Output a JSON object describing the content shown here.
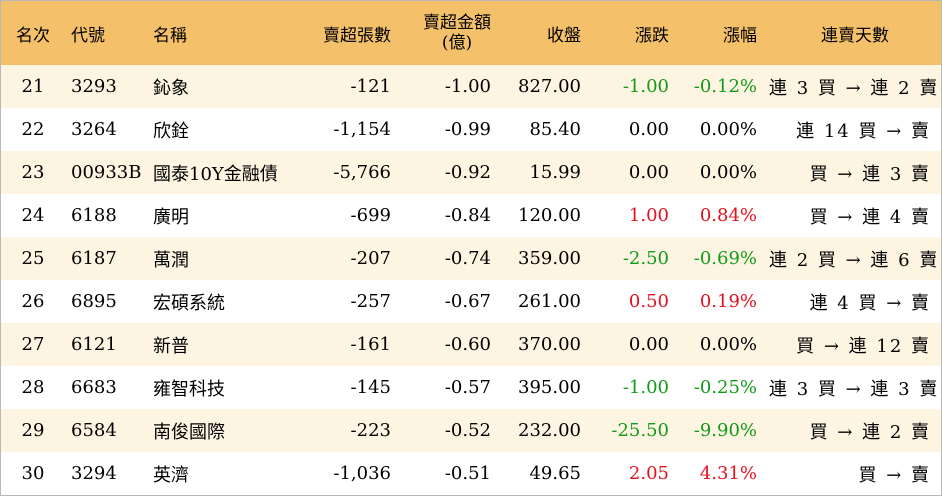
{
  "headers": {
    "rank": "名次",
    "code": "代號",
    "name": "名稱",
    "sell_lots": "賣超張數",
    "sell_amount_line1": "賣超金額",
    "sell_amount_line2": "(億)",
    "close": "收盤",
    "change": "漲跌",
    "change_pct": "漲幅",
    "streak": "連賣天數"
  },
  "rows": [
    {
      "rank": "21",
      "code": "3293",
      "name": "鈊象",
      "sell_lots": "-121",
      "sell_amount": "-1.00",
      "close": "827.00",
      "change": "-1.00",
      "change_pct": "-0.12%",
      "streak": "連 3 買 → 連 2 賣",
      "trend": "neg"
    },
    {
      "rank": "22",
      "code": "3264",
      "name": "欣銓",
      "sell_lots": "-1,154",
      "sell_amount": "-0.99",
      "close": "85.40",
      "change": "0.00",
      "change_pct": "0.00%",
      "streak": "連 14 買 → 賣",
      "trend": "flat"
    },
    {
      "rank": "23",
      "code": "00933B",
      "name": "國泰10Y金融債",
      "sell_lots": "-5,766",
      "sell_amount": "-0.92",
      "close": "15.99",
      "change": "0.00",
      "change_pct": "0.00%",
      "streak": "買 → 連 3 賣",
      "trend": "flat"
    },
    {
      "rank": "24",
      "code": "6188",
      "name": "廣明",
      "sell_lots": "-699",
      "sell_amount": "-0.84",
      "close": "120.00",
      "change": "1.00",
      "change_pct": "0.84%",
      "streak": "買 → 連 4 賣",
      "trend": "pos"
    },
    {
      "rank": "25",
      "code": "6187",
      "name": "萬潤",
      "sell_lots": "-207",
      "sell_amount": "-0.74",
      "close": "359.00",
      "change": "-2.50",
      "change_pct": "-0.69%",
      "streak": "連 2 買 → 連 6 賣",
      "trend": "neg"
    },
    {
      "rank": "26",
      "code": "6895",
      "name": "宏碩系統",
      "sell_lots": "-257",
      "sell_amount": "-0.67",
      "close": "261.00",
      "change": "0.50",
      "change_pct": "0.19%",
      "streak": "連 4 買 → 賣",
      "trend": "pos"
    },
    {
      "rank": "27",
      "code": "6121",
      "name": "新普",
      "sell_lots": "-161",
      "sell_amount": "-0.60",
      "close": "370.00",
      "change": "0.00",
      "change_pct": "0.00%",
      "streak": "買 → 連 12 賣",
      "trend": "flat"
    },
    {
      "rank": "28",
      "code": "6683",
      "name": "雍智科技",
      "sell_lots": "-145",
      "sell_amount": "-0.57",
      "close": "395.00",
      "change": "-1.00",
      "change_pct": "-0.25%",
      "streak": "連 3 買 → 連 3 賣",
      "trend": "neg"
    },
    {
      "rank": "29",
      "code": "6584",
      "name": "南俊國際",
      "sell_lots": "-223",
      "sell_amount": "-0.52",
      "close": "232.00",
      "change": "-25.50",
      "change_pct": "-9.90%",
      "streak": "買 → 連 2 賣",
      "trend": "neg"
    },
    {
      "rank": "30",
      "code": "3294",
      "name": "英濟",
      "sell_lots": "-1,036",
      "sell_amount": "-0.51",
      "close": "49.65",
      "change": "2.05",
      "change_pct": "4.31%",
      "streak": "買 → 賣",
      "trend": "pos"
    }
  ],
  "colors": {
    "header_bg": "#f4c06a",
    "odd_row_bg": "#fdf5e2",
    "even_row_bg": "#ffffff",
    "up": "#e5101f",
    "down": "#139a1a",
    "flat": "#000000"
  }
}
